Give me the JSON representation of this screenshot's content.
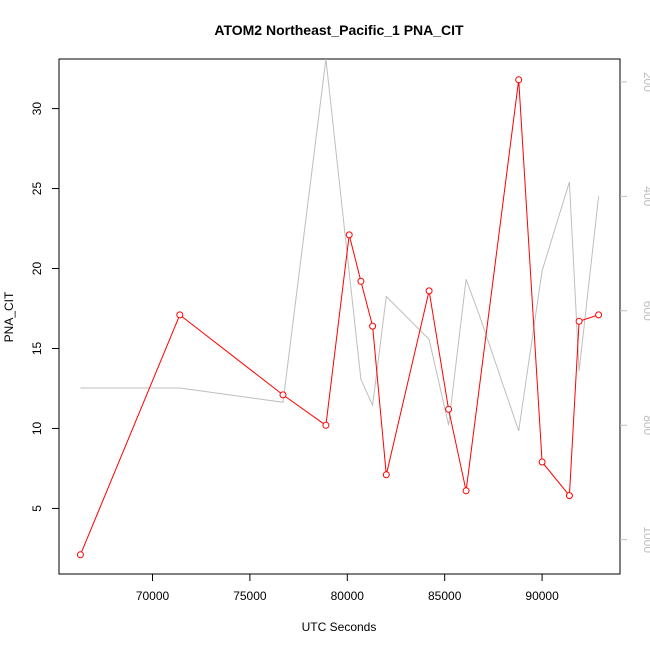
{
  "chart_data": {
    "type": "line",
    "title": "ATOM2 Northeast_Pacific_1 PNA_CIT",
    "xlabel": "UTC Seconds",
    "ylabel": "PNA_CIT",
    "xlim": [
      65200,
      94000
    ],
    "ylim": [
      0.9,
      33.1
    ],
    "x_ticks": [
      70000,
      75000,
      80000,
      85000,
      90000
    ],
    "y_ticks": [
      5,
      10,
      15,
      20,
      25,
      30
    ],
    "y2lim": [
      1060,
      160
    ],
    "y2_ticks": [
      200,
      400,
      600,
      800,
      1000
    ],
    "series": [
      {
        "axis": "left",
        "color": "#ff0000",
        "markers": "open-circle",
        "x": [
          66300,
          71400,
          76700,
          78900,
          80100,
          80700,
          81300,
          82000,
          84200,
          85200,
          86100,
          88800,
          90000,
          91400,
          91900,
          92900
        ],
        "y": [
          2.1,
          17.1,
          12.1,
          10.2,
          22.1,
          19.2,
          16.4,
          7.1,
          18.6,
          11.2,
          6.1,
          31.8,
          7.9,
          5.8,
          16.7,
          17.1
        ]
      },
      {
        "axis": "right",
        "color": "#bebebe",
        "markers": "none",
        "x": [
          66300,
          71400,
          76700,
          78900,
          80700,
          81300,
          82000,
          84200,
          85200,
          86100,
          86800,
          88800,
          90000,
          91400,
          91900,
          92900
        ],
        "y": [
          735,
          735,
          760,
          160,
          720,
          765,
          575,
          650,
          800,
          545,
          610,
          810,
          530,
          375,
          705,
          400
        ]
      }
    ]
  }
}
